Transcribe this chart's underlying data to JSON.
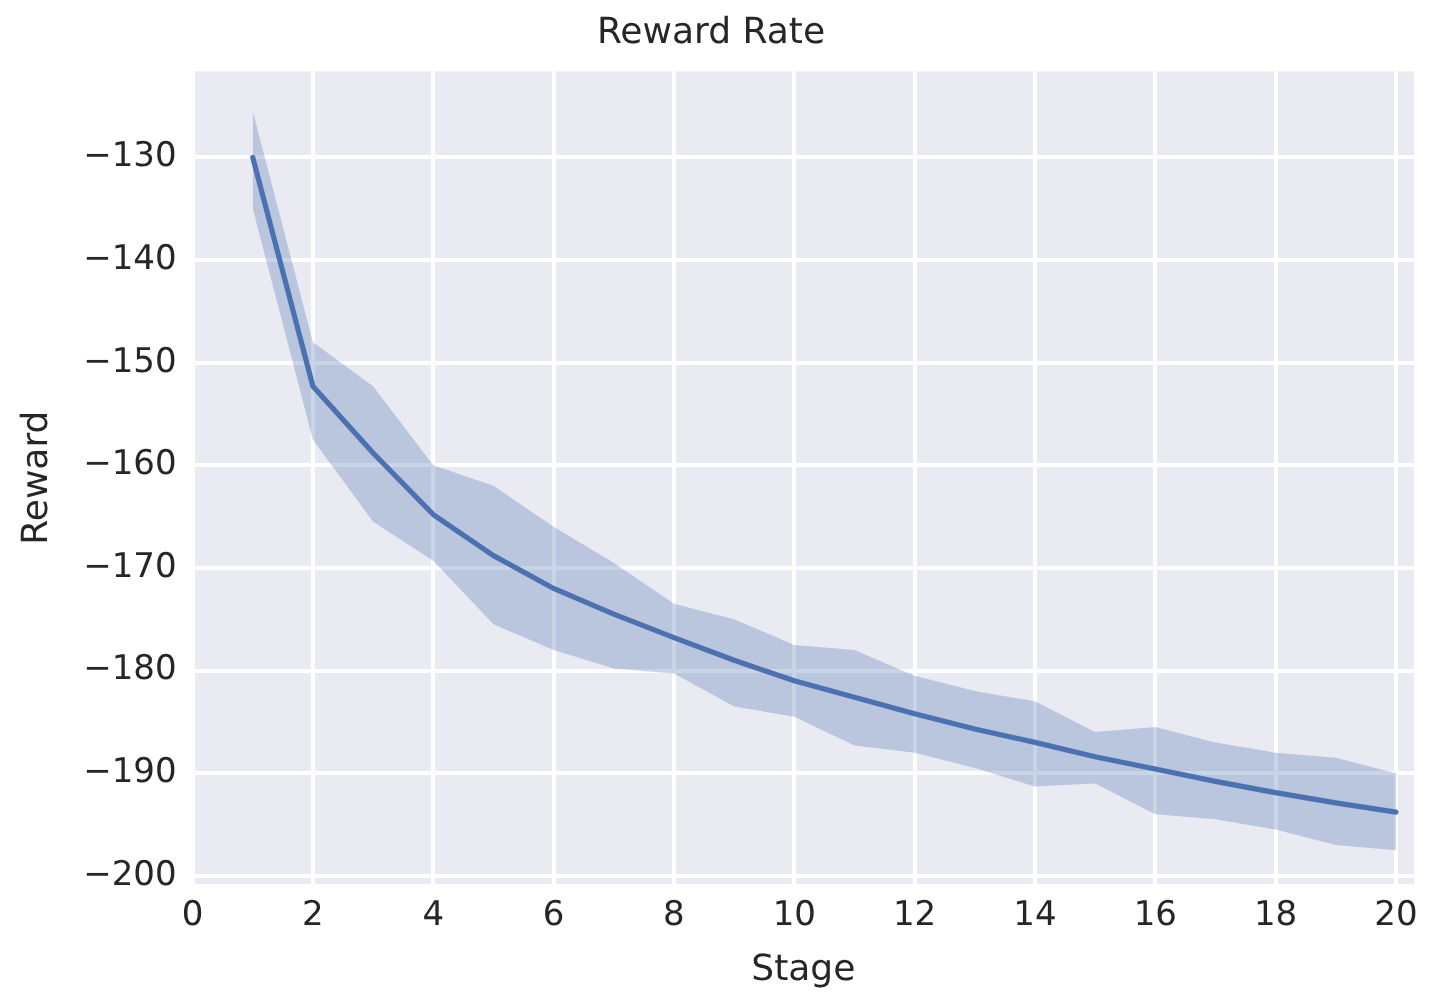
{
  "chart_data": {
    "type": "line",
    "title": "Reward Rate",
    "xlabel": "Stage",
    "ylabel": "Reward",
    "x": [
      1,
      2,
      3,
      4,
      5,
      6,
      7,
      8,
      9,
      10,
      11,
      12,
      13,
      14,
      15,
      16,
      17,
      18,
      19,
      20
    ],
    "series": [
      {
        "color": "#4c72b0",
        "values": [
          -130,
          -152.3,
          -158.8,
          -164.8,
          -168.8,
          -172,
          -174.5,
          -176.8,
          -179,
          -181,
          -182.6,
          -184.2,
          -185.7,
          -187,
          -188.4,
          -189.6,
          -190.8,
          -191.9,
          -192.9,
          -193.8
        ],
        "upper": [
          -125.5,
          -148,
          -152.3,
          -160,
          -162,
          -166,
          -169.5,
          -173.5,
          -175,
          -177.5,
          -178,
          -180.5,
          -182,
          -183,
          -186,
          -185.5,
          -187,
          -188,
          -188.5,
          -190
        ],
        "lower": [
          -135,
          -157.5,
          -165.5,
          -169.3,
          -175.5,
          -178,
          -179.8,
          -180.3,
          -183.5,
          -184.5,
          -187.3,
          -188,
          -189.5,
          -191.3,
          -191,
          -194,
          -194.5,
          -195.5,
          -197,
          -197.5
        ]
      }
    ],
    "xlim": [
      0,
      20.3
    ],
    "xticks": [
      0,
      2,
      4,
      6,
      8,
      10,
      12,
      14,
      16,
      18,
      20
    ],
    "ylim": [
      -200.8,
      -121.6
    ],
    "yticks": [
      -200,
      -190,
      -180,
      -170,
      -160,
      -150,
      -140,
      -130
    ],
    "grid": true,
    "marker": "none",
    "line_style": "solid"
  }
}
